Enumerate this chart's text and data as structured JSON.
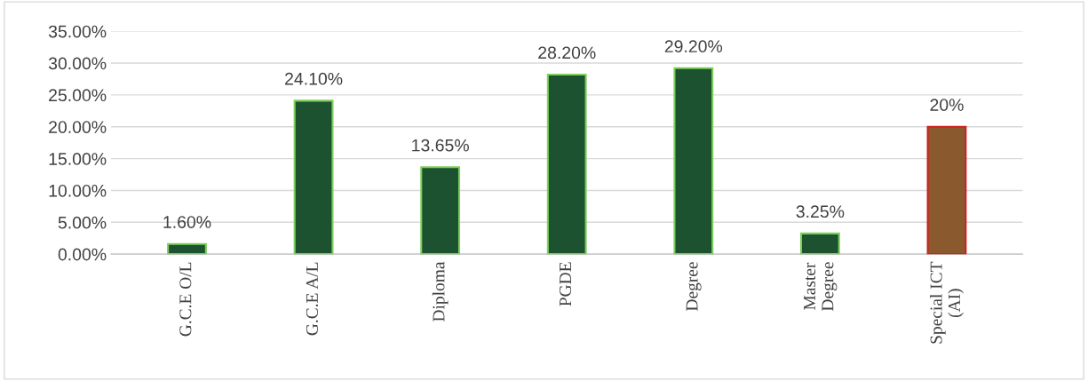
{
  "chart_data": {
    "type": "bar",
    "categories": [
      "G.C.E O/L",
      "G.C.E A/L",
      "Diploma",
      "PGDE",
      "Degree",
      "Master\nDegree",
      "Special ICT\n(AI)"
    ],
    "values": [
      1.6,
      24.1,
      13.65,
      28.2,
      29.2,
      3.25,
      20
    ],
    "colors": [
      "#1d5230",
      "#1d5230",
      "#1d5230",
      "#1d5230",
      "#1d5230",
      "#1d5230",
      "#8a5a2e"
    ],
    "value_labels": [
      "1.60%",
      "24.10%",
      "13.65%",
      "28.20%",
      "29.20%",
      "3.25%",
      "20%"
    ],
    "ylim": [
      0,
      35
    ],
    "yticks": [
      {
        "value": 0,
        "label": "0.00%"
      },
      {
        "value": 5,
        "label": "5.00%"
      },
      {
        "value": 10,
        "label": "10.00%"
      },
      {
        "value": 15,
        "label": "15.00%"
      },
      {
        "value": 20,
        "label": "20.00%"
      },
      {
        "value": 25,
        "label": "25.00%"
      },
      {
        "value": 30,
        "label": "30.00%"
      },
      {
        "value": 35,
        "label": "35.00%"
      }
    ],
    "grid": "y"
  }
}
